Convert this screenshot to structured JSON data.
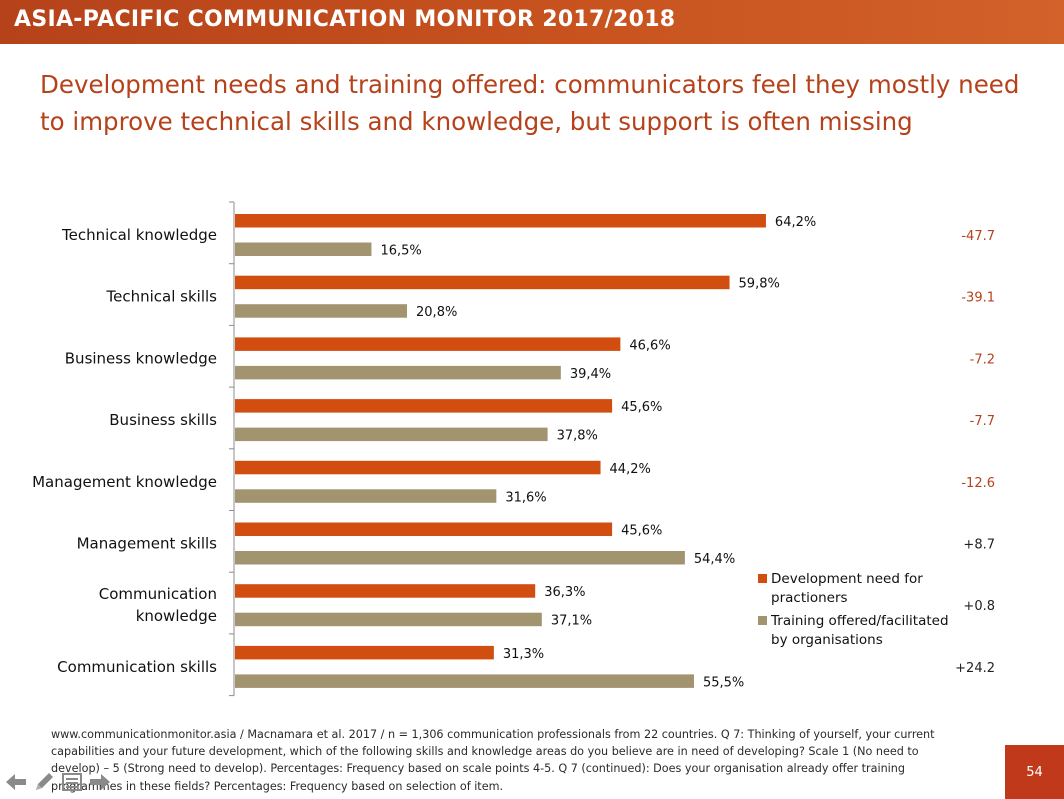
{
  "header": {
    "title": "ASIA-PACIFIC COMMUNICATION MONITOR 2017/2018"
  },
  "slide": {
    "title": "Development needs and training offered: communicators feel they mostly need to improve technical skills and knowledge, but support is often missing",
    "footnote": "www.communicationmonitor.asia / Macnamara et al. 2017 / n = 1,306 communication professionals from 22 countries. Q 7: Thinking of yourself, your current capabilities and your future development, which of the following skills and knowledge areas do you believe are in need of developing? Scale 1 (No need to develop) – 5 (Strong need to develop). Percentages: Frequency based on scale points 4-5. Q 7 (continued): Does your organisation already offer training programmes in these fields? Percentages: Frequency based on selection of item.",
    "page_number": "54"
  },
  "colors": {
    "need": "#d14d10",
    "training": "#a39470",
    "accent": "#b5421a",
    "diff_negative": "#b5421a",
    "diff_positive": "#222222"
  },
  "nav": {
    "icons": [
      "back-arrow-icon",
      "pen-icon",
      "menu-icon",
      "forward-arrow-icon"
    ]
  },
  "chart_data": {
    "type": "bar",
    "orientation": "horizontal",
    "categories": [
      [
        "Technical knowledge"
      ],
      [
        "Technical skills"
      ],
      [
        "Business knowledge"
      ],
      [
        "Business skills"
      ],
      [
        "Management knowledge"
      ],
      [
        "Management skills"
      ],
      [
        "Communication",
        "knowledge"
      ],
      [
        "Communication skills"
      ]
    ],
    "series": [
      {
        "name": "Development need for practioners",
        "legend_lines": [
          "Development need for",
          "practioners"
        ],
        "values": [
          64.2,
          59.8,
          46.6,
          45.6,
          44.2,
          45.6,
          36.3,
          31.3
        ],
        "labels": [
          "64,2%",
          "59,8%",
          "46,6%",
          "45,6%",
          "44,2%",
          "45,6%",
          "36,3%",
          "31,3%"
        ]
      },
      {
        "name": "Training offered/facilitated by organisations",
        "legend_lines": [
          "Training offered/facilitated",
          "by organisations"
        ],
        "values": [
          16.5,
          20.8,
          39.4,
          37.8,
          31.6,
          54.4,
          37.1,
          55.5
        ],
        "labels": [
          "16,5%",
          "20,8%",
          "39,4%",
          "37,8%",
          "31,6%",
          "54,4%",
          "37,1%",
          "55,5%"
        ]
      }
    ],
    "differences": [
      "-47.7",
      "-39.1",
      "-7.2",
      "-7.7",
      "-12.6",
      "+8.7",
      "+0.8",
      "+24.2"
    ],
    "xlim": [
      0,
      100
    ],
    "grid": false,
    "legend_position": "bottom-right"
  }
}
